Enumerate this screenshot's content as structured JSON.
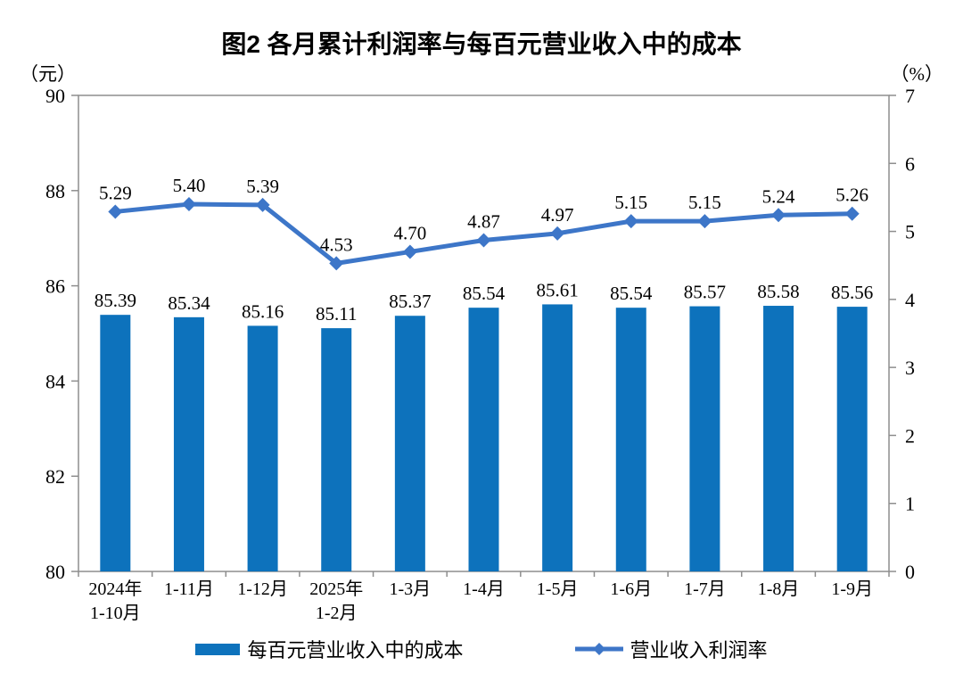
{
  "title": "图2 各月累计利润率与每百元营业收入中的成本",
  "axes": {
    "left_unit": "（元）",
    "right_unit": "（%）"
  },
  "legend": {
    "bars_label": "每百元营业收入中的成本",
    "line_label": "营业收入利润率"
  },
  "chart_data": {
    "type": "combo_bar_line",
    "title": "图2 各月累计利润率与每百元营业收入中的成本",
    "categories": [
      [
        "2024年",
        "1-10月"
      ],
      [
        "1-11月"
      ],
      [
        "1-12月"
      ],
      [
        "2025年",
        "1-2月"
      ],
      [
        "1-3月"
      ],
      [
        "1-4月"
      ],
      [
        "1-5月"
      ],
      [
        "1-6月"
      ],
      [
        "1-7月"
      ],
      [
        "1-8月"
      ],
      [
        "1-9月"
      ]
    ],
    "series": [
      {
        "name": "每百元营业收入中的成本",
        "type": "bar",
        "axis": "left",
        "color": "#0D72BC",
        "values": [
          85.39,
          85.34,
          85.16,
          85.11,
          85.37,
          85.54,
          85.61,
          85.54,
          85.57,
          85.58,
          85.56
        ]
      },
      {
        "name": "营业收入利润率",
        "type": "line",
        "axis": "right",
        "color": "#3D76C8",
        "marker": "diamond",
        "values": [
          5.29,
          5.4,
          5.39,
          4.53,
          4.7,
          4.87,
          4.97,
          5.15,
          5.15,
          5.24,
          5.26
        ]
      }
    ],
    "left_axis": {
      "unit": "（元）",
      "min": 80,
      "max": 90,
      "tick_step": 2
    },
    "right_axis": {
      "unit": "（%）",
      "min": 0,
      "max": 7,
      "tick_step": 1
    },
    "grid": false,
    "value_labels": true,
    "legend_position": "bottom",
    "axis_color": "#8e8e8e"
  }
}
